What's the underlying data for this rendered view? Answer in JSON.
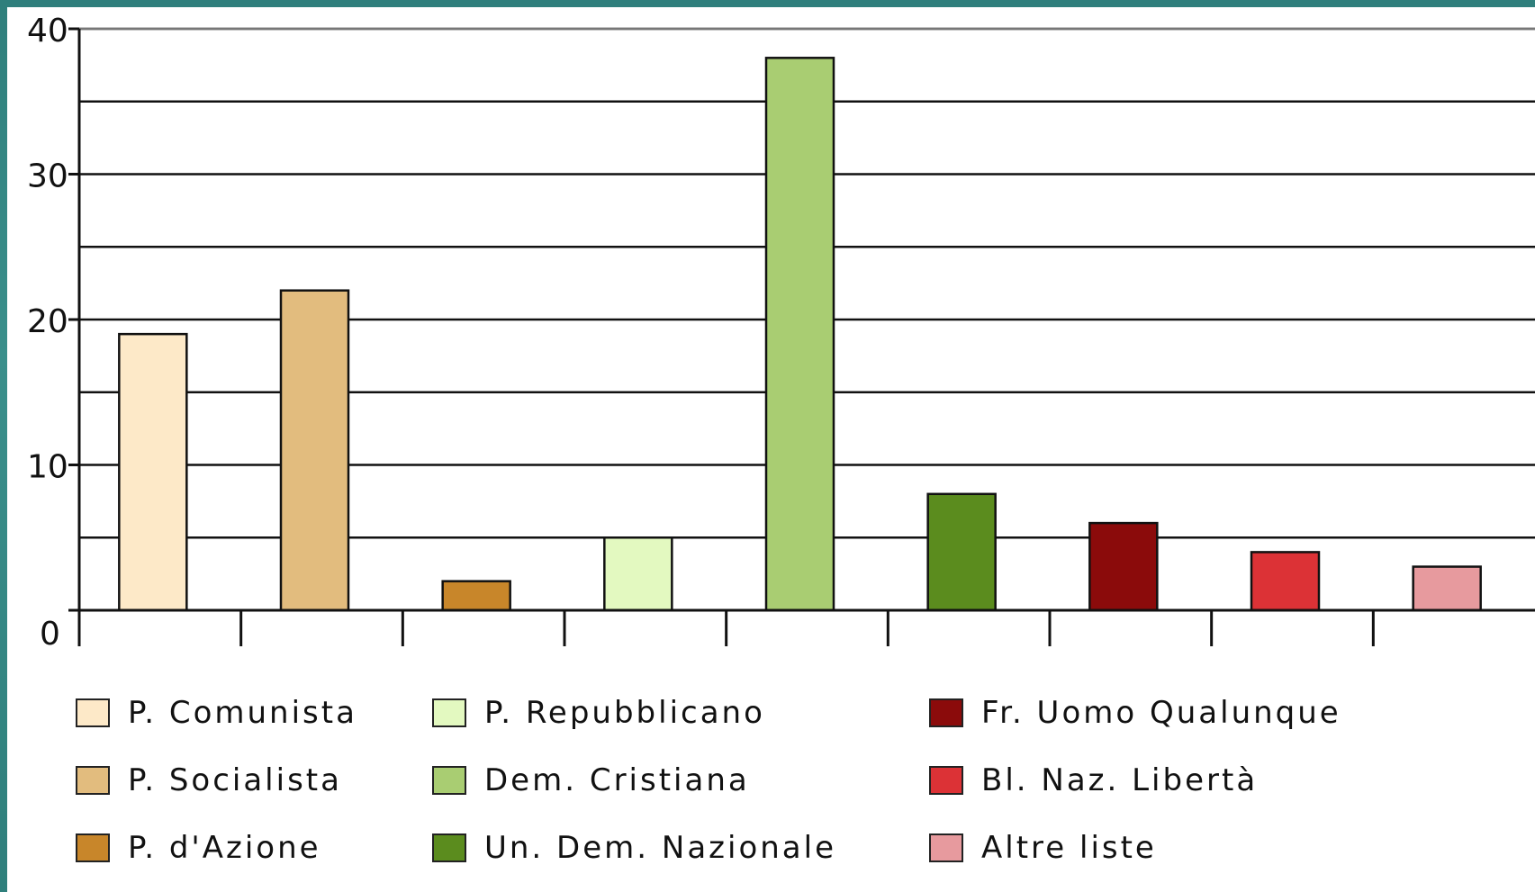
{
  "chart_data": {
    "type": "bar",
    "categories": [
      "P. Comunista",
      "P. Socialista",
      "P. d'Azione",
      "P. Repubblicano",
      "Dem. Cristiana",
      "Un. Dem. Nazionale",
      "Fr. Uomo Qualunque",
      "Bl. Naz. Libertà",
      "Altre liste"
    ],
    "values": [
      19,
      22,
      2,
      5,
      38,
      8,
      6,
      4,
      3
    ],
    "colors": [
      "#fde9c8",
      "#e2bc7e",
      "#c8862a",
      "#e3f9c0",
      "#a9cd72",
      "#5b8c1e",
      "#8b0b0b",
      "#dc3236",
      "#e79a9e"
    ],
    "yticks": [
      0,
      10,
      20,
      30,
      40
    ],
    "ylim": [
      0,
      40
    ],
    "grid": true,
    "legend_position": "bottom"
  }
}
